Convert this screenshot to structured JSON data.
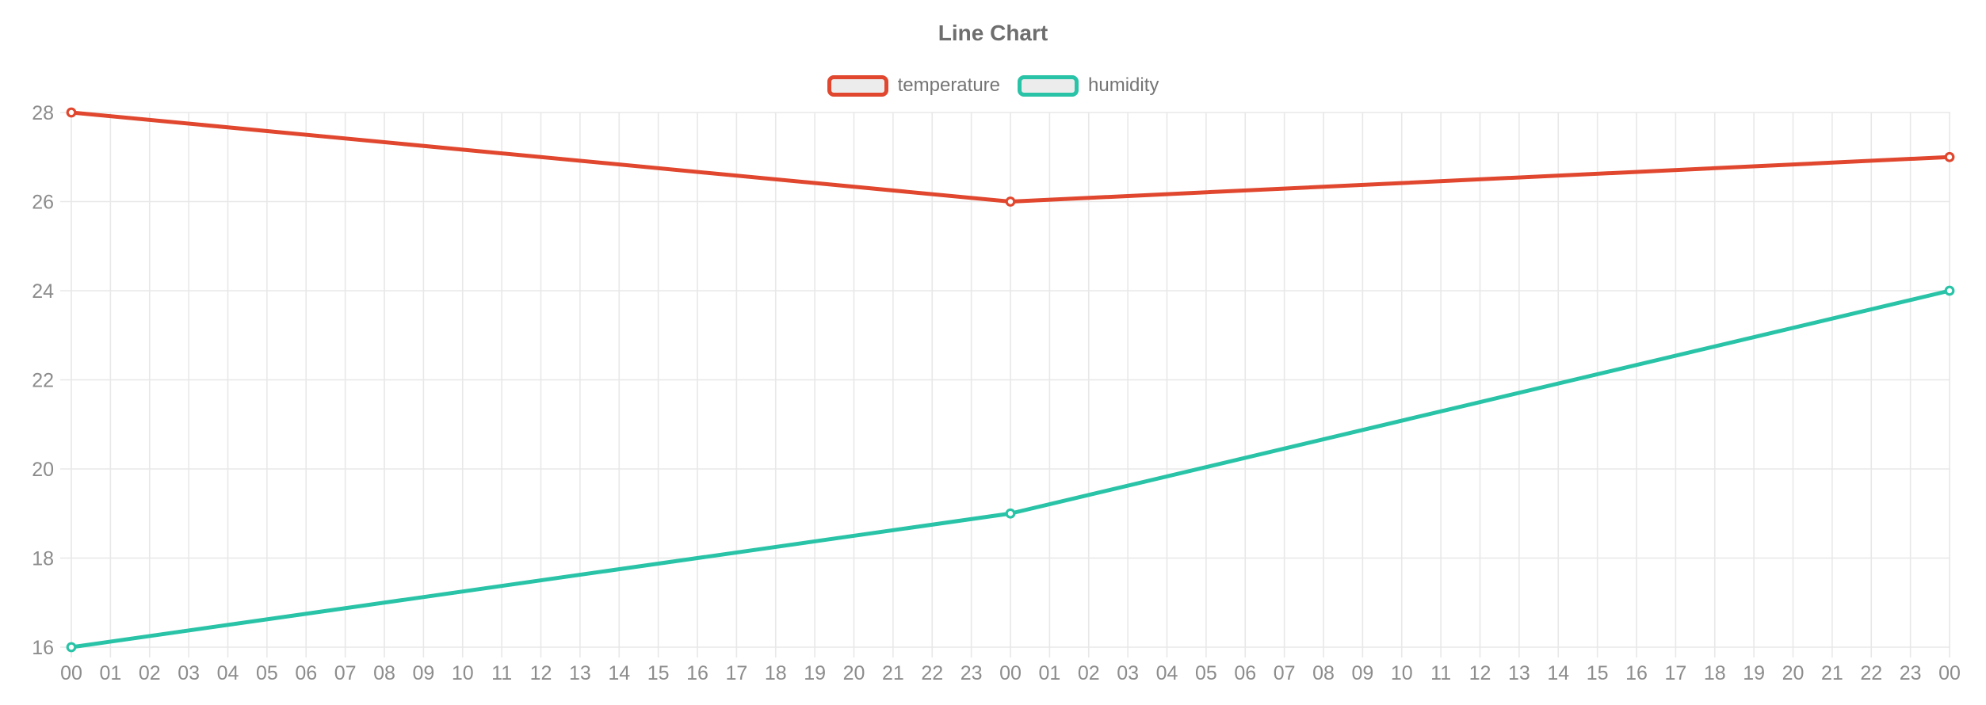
{
  "title": "Line Chart",
  "legend": {
    "items": [
      {
        "label": "temperature",
        "color": "#e0472e"
      },
      {
        "label": "humidity",
        "color": "#29c3a7"
      }
    ]
  },
  "colors": {
    "temperature": "#e0472e",
    "humidity": "#29c3a7",
    "grid": "#e8e8e8",
    "axis_label": "#8c8c8c",
    "legend_label": "#757575",
    "title_text": "#6e6e6e",
    "swatch_fill": "#ececec",
    "marker_fill": "#ffffff",
    "background": "#ffffff"
  },
  "chart_data": {
    "type": "line",
    "title": "Line Chart",
    "xlabel": "",
    "ylabel": "",
    "grid": true,
    "legend_position": "top",
    "ylim": [
      16,
      28
    ],
    "yticks": [
      16,
      18,
      20,
      22,
      24,
      26,
      28
    ],
    "categories": [
      "00",
      "01",
      "02",
      "03",
      "04",
      "05",
      "06",
      "07",
      "08",
      "09",
      "10",
      "11",
      "12",
      "13",
      "14",
      "15",
      "16",
      "17",
      "18",
      "19",
      "20",
      "21",
      "22",
      "23",
      "00",
      "01",
      "02",
      "03",
      "04",
      "05",
      "06",
      "07",
      "08",
      "09",
      "10",
      "11",
      "12",
      "13",
      "14",
      "15",
      "16",
      "17",
      "18",
      "19",
      "20",
      "21",
      "22",
      "23",
      "00"
    ],
    "series": [
      {
        "name": "temperature",
        "color": "#e0472e",
        "points": [
          {
            "category_index": 0,
            "category": "00",
            "value": 28
          },
          {
            "category_index": 24,
            "category": "00",
            "value": 26
          },
          {
            "category_index": 48,
            "category": "00",
            "value": 27
          }
        ]
      },
      {
        "name": "humidity",
        "color": "#29c3a7",
        "points": [
          {
            "category_index": 0,
            "category": "00",
            "value": 16
          },
          {
            "category_index": 24,
            "category": "00",
            "value": 19
          },
          {
            "category_index": 48,
            "category": "00",
            "value": 24
          }
        ]
      }
    ]
  }
}
